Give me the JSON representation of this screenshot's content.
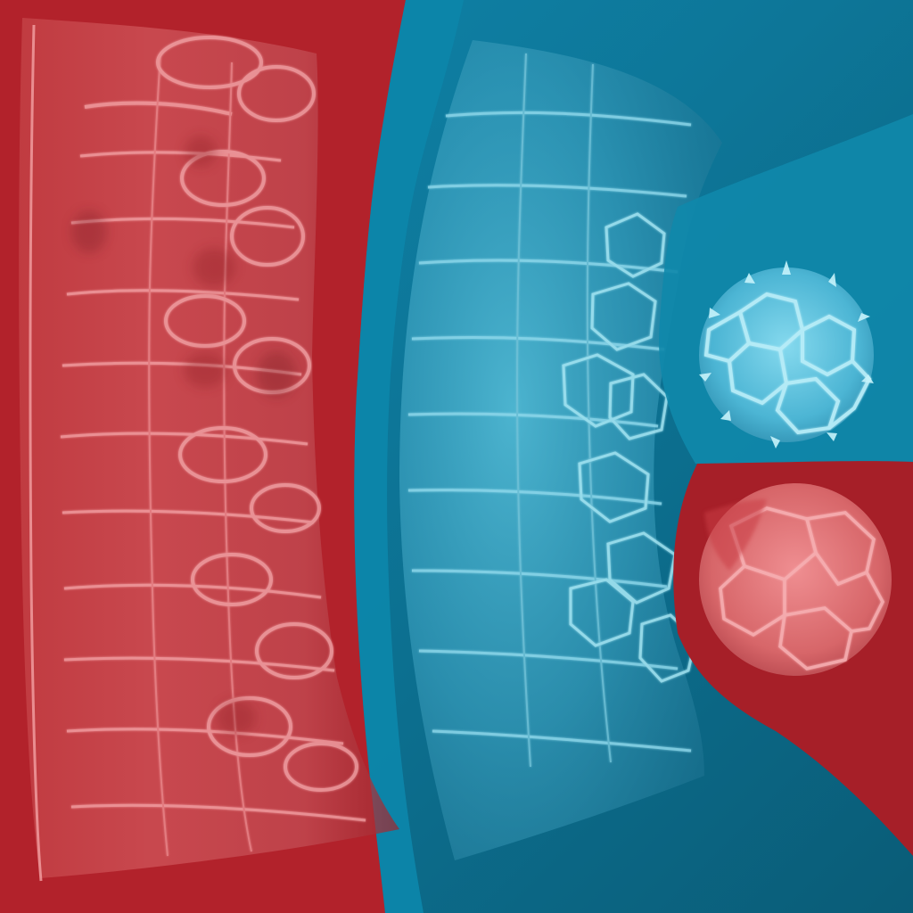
{
  "image": {
    "kind": "texture-atlas",
    "description_visible": "",
    "colors": {
      "red_base": "#b2222b",
      "red_dark": "#8f1b22",
      "red_light": "#e36a6f",
      "blue_base": "#0d86aa",
      "blue_dark": "#0b5f78",
      "blue_light": "#4fb8d5",
      "cell_line_red": "#f29a9d",
      "cell_line_blue": "#8fd7ea"
    }
  }
}
